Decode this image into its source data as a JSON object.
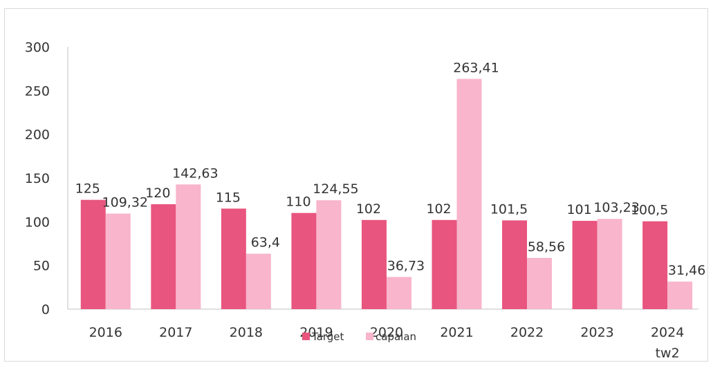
{
  "chart_data": {
    "type": "bar",
    "categories": [
      [
        "2016"
      ],
      [
        "2017"
      ],
      [
        "2018"
      ],
      [
        "2019"
      ],
      [
        "2020"
      ],
      [
        "2021"
      ],
      [
        "2022"
      ],
      [
        "2023"
      ],
      [
        "2024",
        "tw2"
      ]
    ],
    "series": [
      {
        "name": "Target",
        "color": "#e8557e",
        "values": [
          125,
          120,
          115,
          110,
          102,
          102,
          101.5,
          101,
          100.5
        ],
        "labels": [
          "125",
          "120",
          "115",
          "110",
          "102",
          "102",
          "101,5",
          "101",
          "100,5"
        ]
      },
      {
        "name": "capaian",
        "color": "#f8b5cb",
        "values": [
          109.32,
          142.63,
          63.4,
          124.55,
          36.73,
          263.41,
          58.56,
          103.23,
          31.46
        ],
        "labels": [
          "109,32",
          "142,63",
          "63,4",
          "124,55",
          "36,73",
          "263,41",
          "58,56",
          "103,23",
          "31,46"
        ]
      }
    ],
    "ylim": [
      0,
      300
    ],
    "yticks": [
      0,
      50,
      100,
      150,
      200,
      250,
      300
    ],
    "grid": false,
    "legend": "bottom",
    "title": "",
    "xlabel": "",
    "ylabel": ""
  }
}
